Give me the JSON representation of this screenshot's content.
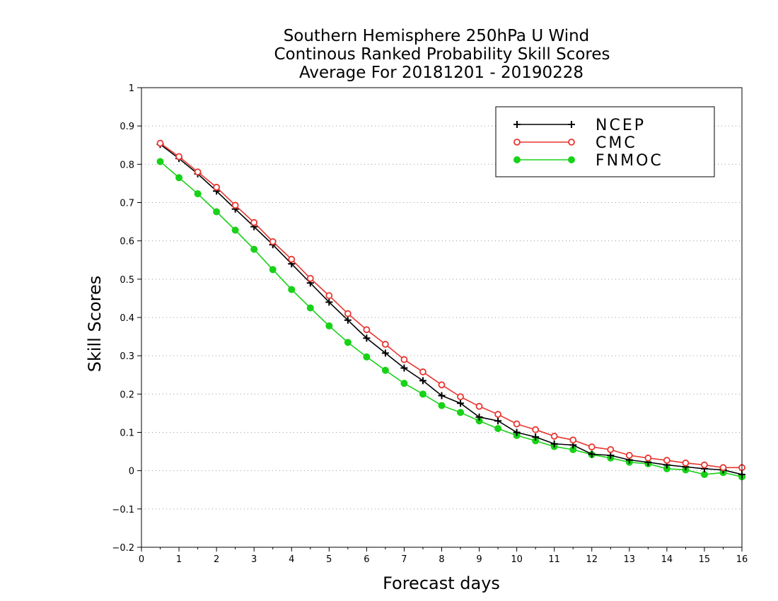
{
  "chart_data": {
    "type": "line",
    "title_lines": [
      "Southern Hemisphere 250hPa U Wind",
      "Continous Ranked Probability Skill Scores",
      "Average For 20181201 - 20190228"
    ],
    "xlabel": "Forecast days",
    "ylabel": "Skill Scores",
    "xlim": [
      0,
      16
    ],
    "ylim": [
      -0.2,
      1
    ],
    "xticks": [
      0,
      1,
      2,
      3,
      4,
      5,
      6,
      7,
      8,
      9,
      10,
      11,
      12,
      13,
      14,
      15,
      16
    ],
    "yticks": [
      -0.2,
      -0.1,
      0,
      0.1,
      0.2,
      0.3,
      0.4,
      0.5,
      0.6,
      0.7,
      0.8,
      0.9,
      1
    ],
    "ytick_labels": [
      "−0.2",
      "−0.1",
      "0",
      "0.1",
      "0.2",
      "0.3",
      "0.4",
      "0.5",
      "0.6",
      "0.7",
      "0.8",
      "0.9",
      "1"
    ],
    "grid": "horizontal dotted",
    "legend_position": "top-right",
    "x": [
      0.5,
      1,
      1.5,
      2,
      2.5,
      3,
      3.5,
      4,
      4.5,
      5,
      5.5,
      6,
      6.5,
      7,
      7.5,
      8,
      8.5,
      9,
      9.5,
      10,
      10.5,
      11,
      11.5,
      12,
      12.5,
      13,
      13.5,
      14,
      14.5,
      15,
      15.5,
      16
    ],
    "series": [
      {
        "name": "NCEP",
        "color": "#000000",
        "marker": "plus",
        "values": [
          0.852,
          0.815,
          0.775,
          0.73,
          0.683,
          0.637,
          0.59,
          0.54,
          0.49,
          0.44,
          0.393,
          0.346,
          0.307,
          0.268,
          0.235,
          0.196,
          0.176,
          0.14,
          0.13,
          0.1,
          0.088,
          0.07,
          0.067,
          0.043,
          0.04,
          0.028,
          0.022,
          0.015,
          0.01,
          0.005,
          0.002,
          -0.01
        ]
      },
      {
        "name": "CMC",
        "color": "#e8352f",
        "marker": "open-circle",
        "values": [
          0.855,
          0.82,
          0.78,
          0.74,
          0.693,
          0.648,
          0.598,
          0.552,
          0.502,
          0.457,
          0.41,
          0.368,
          0.33,
          0.29,
          0.258,
          0.224,
          0.193,
          0.168,
          0.147,
          0.122,
          0.107,
          0.09,
          0.08,
          0.062,
          0.055,
          0.04,
          0.033,
          0.027,
          0.02,
          0.015,
          0.008,
          0.008
        ]
      },
      {
        "name": "FNMOC",
        "color": "#18d218",
        "marker": "filled-circle",
        "values": [
          0.807,
          0.765,
          0.723,
          0.676,
          0.628,
          0.578,
          0.525,
          0.473,
          0.425,
          0.378,
          0.335,
          0.297,
          0.262,
          0.228,
          0.2,
          0.17,
          0.152,
          0.13,
          0.11,
          0.092,
          0.078,
          0.063,
          0.055,
          0.042,
          0.033,
          0.022,
          0.018,
          0.005,
          0.002,
          -0.01,
          -0.005,
          -0.016
        ]
      }
    ]
  }
}
